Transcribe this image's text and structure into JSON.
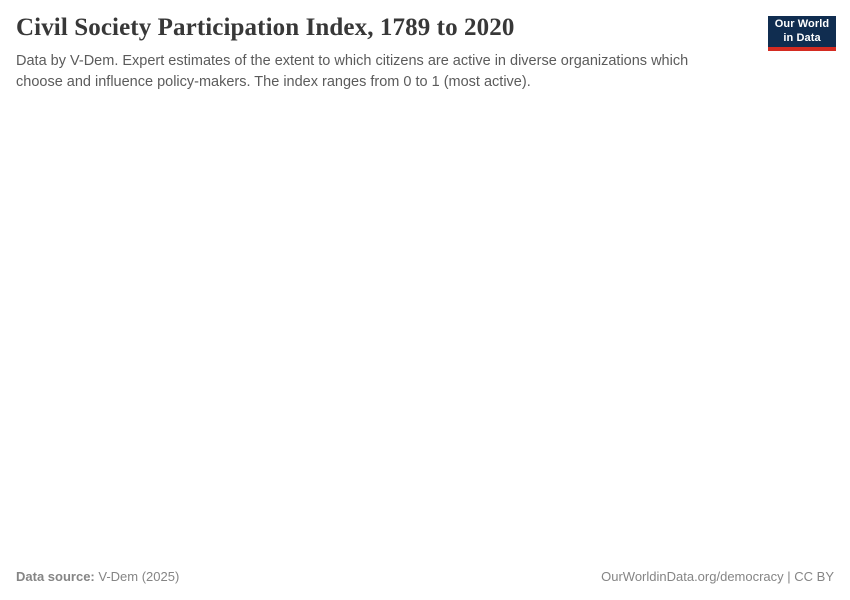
{
  "header": {
    "title": "Civil Society Participation Index, 1789 to 2020",
    "subtitle": "Data by V-Dem. Expert estimates of the extent to which citizens are active in diverse organizations which choose and influence policy-makers. The index ranges from 0 to 1 (most active).",
    "logo": {
      "line1": "Our World",
      "line2": "in Data",
      "bg_color": "#102d50",
      "stripe_color": "#d42b21"
    }
  },
  "footer": {
    "data_source_label": "Data source:",
    "data_source_value": " V-Dem (2025)",
    "url_license_text": "OurWorldinData.org/democracy | CC BY"
  },
  "chart_data": {
    "type": "line",
    "title": "Civil Society Participation Index, 1789 to 2020",
    "xlabel": "",
    "ylabel": "",
    "x_range": [
      1789,
      2020
    ],
    "y_range": [
      0,
      1
    ],
    "series": [],
    "plot_area_rendered": false
  },
  "colors": {
    "title_text": "#383838",
    "subtitle_text": "#5b5b5b",
    "footer_text": "#858585",
    "logo_navy": "#102d50",
    "logo_red": "#d42b21",
    "background": "#ffffff"
  }
}
